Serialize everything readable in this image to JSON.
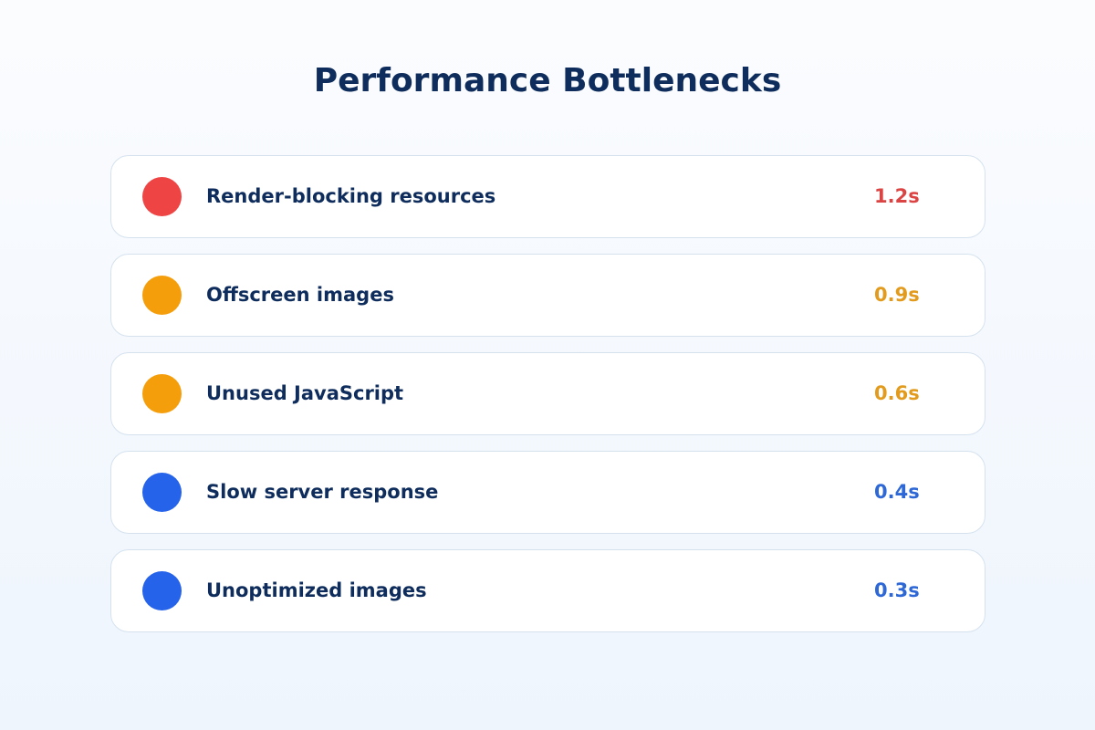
{
  "header": {
    "title": "Performance Bottlenecks"
  },
  "items": [
    {
      "label": "Render-blocking resources",
      "value": "1.2s",
      "dot_color": "#ef4444",
      "value_color": "#dc4444"
    },
    {
      "label": "Offscreen images",
      "value": "0.9s",
      "dot_color": "#f59e0b",
      "value_color": "#e29b1c"
    },
    {
      "label": "Unused JavaScript",
      "value": "0.6s",
      "dot_color": "#f59e0b",
      "value_color": "#e29b1c"
    },
    {
      "label": "Slow server response",
      "value": "0.4s",
      "dot_color": "#2563eb",
      "value_color": "#2d68d6"
    },
    {
      "label": "Unoptimized images",
      "value": "0.3s",
      "dot_color": "#2563eb",
      "value_color": "#2d68d6"
    }
  ]
}
